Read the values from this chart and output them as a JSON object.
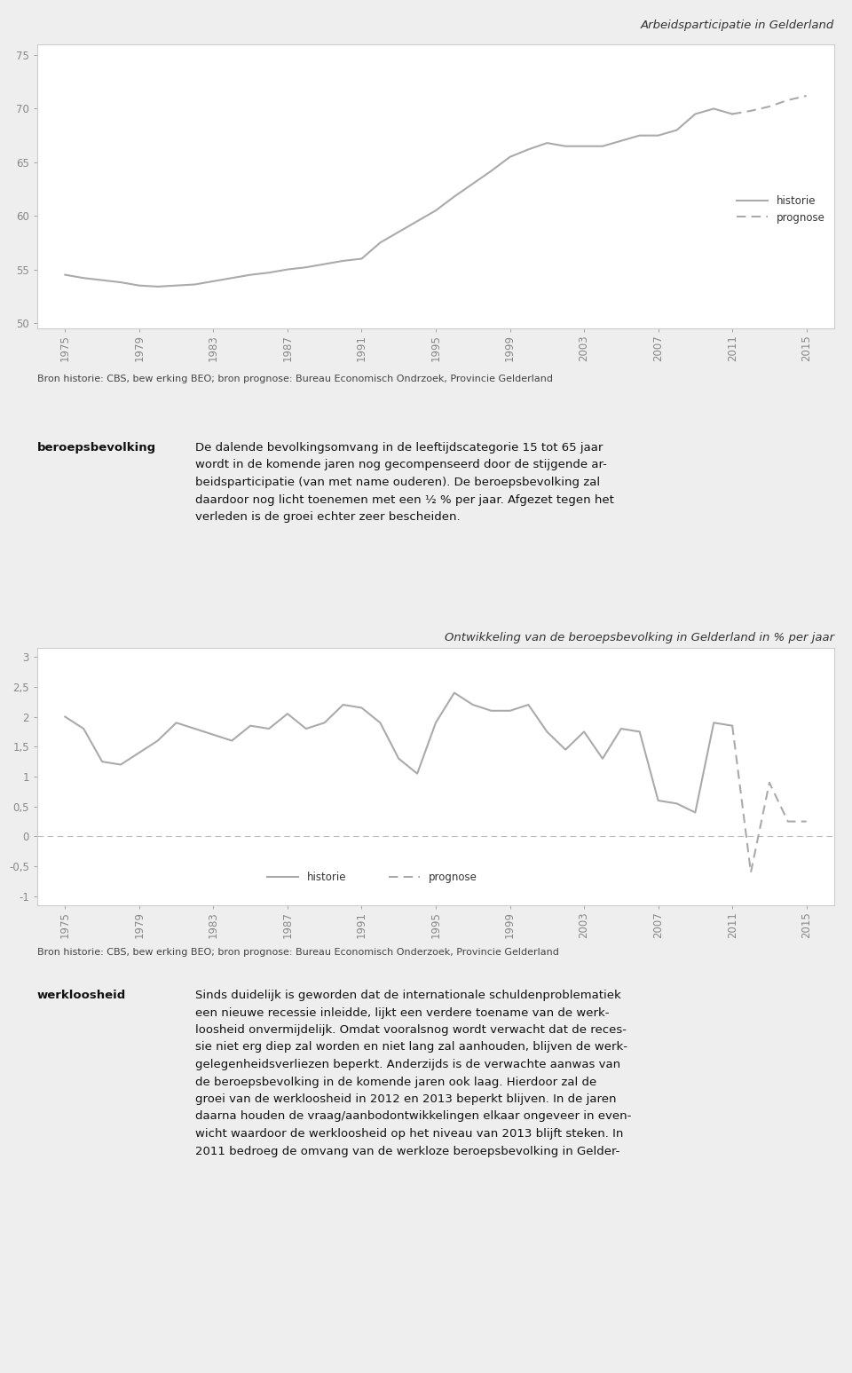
{
  "chart1_title": "Arbeidsparticipatie in Gelderland",
  "chart1_source": "Bron historie: CBS, bew erking BEO; bron prognose: Bureau Economisch Ondrzoek, Provincie Gelderland",
  "chart1_yticks": [
    50,
    55,
    60,
    65,
    70,
    75
  ],
  "chart1_ylim": [
    49.5,
    76
  ],
  "chart1_xticks": [
    1975,
    1979,
    1983,
    1987,
    1991,
    1995,
    1999,
    2003,
    2007,
    2011,
    2015
  ],
  "chart1_xlim": [
    1973.5,
    2016.5
  ],
  "chart1_historie_x": [
    1975,
    1976,
    1977,
    1978,
    1979,
    1980,
    1981,
    1982,
    1983,
    1984,
    1985,
    1986,
    1987,
    1988,
    1989,
    1990,
    1991,
    1992,
    1993,
    1994,
    1995,
    1996,
    1997,
    1998,
    1999,
    2000,
    2001,
    2002,
    2003,
    2004,
    2005,
    2006,
    2007,
    2008,
    2009,
    2010,
    2011
  ],
  "chart1_historie_y": [
    54.5,
    54.2,
    54.0,
    53.8,
    53.5,
    53.4,
    53.5,
    53.6,
    53.9,
    54.2,
    54.5,
    54.7,
    55.0,
    55.2,
    55.5,
    55.8,
    56.0,
    57.5,
    58.5,
    59.5,
    60.5,
    61.8,
    63.0,
    64.2,
    65.5,
    66.2,
    66.8,
    66.5,
    66.5,
    66.5,
    67.0,
    67.5,
    67.5,
    68.0,
    69.5,
    70.0,
    69.5
  ],
  "chart1_prognose_x": [
    2011,
    2012,
    2013,
    2014,
    2015
  ],
  "chart1_prognose_y": [
    69.5,
    69.8,
    70.2,
    70.8,
    71.2
  ],
  "chart2_title": "Ontwikkeling van de beroepsbevolking in Gelderland in % per jaar",
  "chart2_source": "Bron historie: CBS, bew erking BEO; bron prognose: Bureau Economisch Onderzoek, Provincie Gelderland",
  "chart2_yticks": [
    -1,
    -0.5,
    0,
    0.5,
    1,
    1.5,
    2,
    2.5,
    3
  ],
  "chart2_ylim": [
    -1.15,
    3.15
  ],
  "chart2_xticks": [
    1975,
    1979,
    1983,
    1987,
    1991,
    1995,
    1999,
    2003,
    2007,
    2011,
    2015
  ],
  "chart2_xlim": [
    1973.5,
    2016.5
  ],
  "chart2_historie_x": [
    1975,
    1976,
    1977,
    1978,
    1979,
    1980,
    1981,
    1982,
    1983,
    1984,
    1985,
    1986,
    1987,
    1988,
    1989,
    1990,
    1991,
    1992,
    1993,
    1994,
    1995,
    1996,
    1997,
    1998,
    1999,
    2000,
    2001,
    2002,
    2003,
    2004,
    2005,
    2006,
    2007,
    2008,
    2009,
    2010,
    2011
  ],
  "chart2_historie_y": [
    2.0,
    1.8,
    1.25,
    1.2,
    1.4,
    1.6,
    1.9,
    1.8,
    1.7,
    1.6,
    1.85,
    1.8,
    2.05,
    1.8,
    1.9,
    2.2,
    2.15,
    1.9,
    1.3,
    1.05,
    1.9,
    2.4,
    2.2,
    2.1,
    2.1,
    2.2,
    1.75,
    1.45,
    1.75,
    1.3,
    1.8,
    1.75,
    0.6,
    0.55,
    0.4,
    1.9,
    1.85
  ],
  "chart2_prognose_x": [
    2011,
    2012,
    2013,
    2014,
    2015
  ],
  "chart2_prognose_y": [
    1.85,
    -0.6,
    0.9,
    0.25,
    0.25
  ],
  "line_color": "#aaaaaa",
  "line_color_solid": "#999999",
  "bg_color": "#eeeeee",
  "chart_bg": "#ffffff",
  "text_color": "#111111",
  "source_color": "#444444",
  "title_color": "#333333",
  "zero_line_color": "#bbbbbb"
}
